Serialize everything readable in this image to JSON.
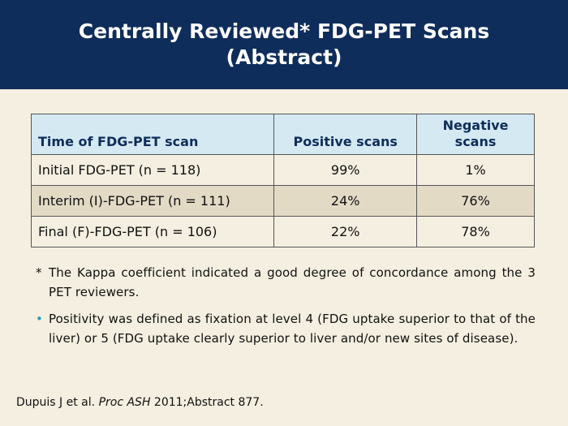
{
  "header": {
    "title_line1": "Centrally Reviewed* FDG-PET Scans",
    "title_line2": "(Abstract)"
  },
  "table": {
    "columns": [
      "Time of FDG-PET scan",
      "Positive scans",
      "Negative scans"
    ],
    "rows": [
      {
        "scan": "Initial FDG-PET (n = 118)",
        "positive": "99%",
        "negative": "1%"
      },
      {
        "scan": "Interim (I)-FDG-PET (n = 111)",
        "positive": "24%",
        "negative": "76%"
      },
      {
        "scan": "Final (F)-FDG-PET (n = 106)",
        "positive": "22%",
        "negative": "78%"
      }
    ]
  },
  "notes": {
    "footnote_mark": "*",
    "footnote": "The Kappa coefficient indicated a good degree of concordance among the 3 PET reviewers.",
    "bullet_mark": "•",
    "bullet": "Positivity was defined as fixation at level 4 (FDG uptake superior to that of the liver) or 5 (FDG uptake clearly superior to liver and/or new sites of disease)."
  },
  "citation": {
    "authors": "Dupuis J et al.",
    "journal": "Proc ASH",
    "details": "2011;Abstract 877."
  },
  "colors": {
    "header_bg": "#0f2d5a",
    "table_header_bg": "#d5e9f3",
    "shaded_row_bg": "#e2dac5",
    "background": "#f4efe0",
    "bullet": "#2a9ab5"
  }
}
